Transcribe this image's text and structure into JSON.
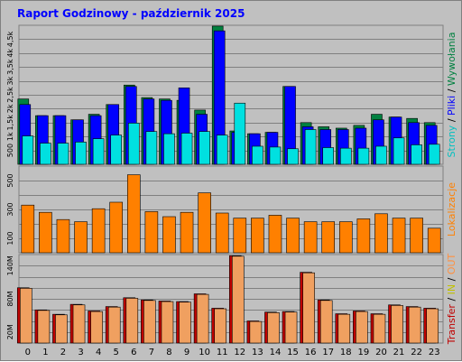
{
  "chart_data": {
    "title": "Raport Godzinowy -  październik 2025",
    "type": "bar",
    "categories": [
      "0",
      "1",
      "2",
      "3",
      "4",
      "5",
      "6",
      "7",
      "8",
      "9",
      "10",
      "11",
      "12",
      "13",
      "14",
      "15",
      "16",
      "17",
      "18",
      "19",
      "20",
      "21",
      "22",
      "23"
    ],
    "panels": [
      {
        "id": "hits",
        "type": "bar",
        "y_ticks": [
          "500",
          "1k",
          "1,5k",
          "2k",
          "2,5k",
          "3k",
          "3,5k",
          "4k",
          "4,5k"
        ],
        "ylim": [
          0,
          5000
        ],
        "label_parts": [
          {
            "text": "Strony",
            "color": "#00c0c0"
          },
          {
            "text": " / ",
            "color": "#000000"
          },
          {
            "text": "Pliki",
            "color": "#0000ff"
          },
          {
            "text": " / ",
            "color": "#000000"
          },
          {
            "text": "Wywołania",
            "color": "#008040"
          }
        ],
        "series": [
          {
            "name": "Wywołania",
            "color": "#008040",
            "values": [
              2350,
              1750,
              1750,
              1600,
              1800,
              2150,
              2850,
              2400,
              2350,
              2300,
              1950,
              4970,
              1200,
              1100,
              1150,
              2800,
              1500,
              1350,
              1300,
              1400,
              1800,
              1700,
              1650,
              1500
            ]
          },
          {
            "name": "Pliki",
            "color": "#0000ff",
            "values": [
              2150,
              1750,
              1750,
              1600,
              1750,
              2150,
              2800,
              2350,
              2300,
              2750,
              1800,
              4800,
              1150,
              1100,
              1150,
              2800,
              1350,
              1250,
              1250,
              1300,
              1600,
              1700,
              1500,
              1400
            ]
          },
          {
            "name": "Strony",
            "color": "#00e0e0",
            "values": [
              1020,
              760,
              760,
              800,
              920,
              1050,
              1480,
              1180,
              1100,
              1120,
              1180,
              1050,
              2200,
              650,
              620,
              560,
              1250,
              600,
              580,
              580,
              650,
              950,
              700,
              720
            ]
          }
        ]
      },
      {
        "id": "visits",
        "type": "bar",
        "y_ticks": [
          "100",
          "300",
          "500"
        ],
        "ylim": [
          0,
          600
        ],
        "label_parts": [
          {
            "text": "Lokalizacje",
            "color": "#ff8000"
          }
        ],
        "series": [
          {
            "name": "Lokalizacje",
            "color": "#ff8000",
            "values": [
              330,
              280,
              230,
              215,
              305,
              350,
              540,
              285,
              250,
              280,
              415,
              275,
              240,
              240,
              260,
              240,
              215,
              215,
              215,
              235,
              270,
              240,
              240,
              170
            ]
          }
        ]
      },
      {
        "id": "transfer",
        "type": "bar",
        "y_ticks": [
          "20M",
          "80M",
          "140M"
        ],
        "ylim": [
          0,
          160
        ],
        "label_parts": [
          {
            "text": "Transfer",
            "color": "#c00000"
          },
          {
            "text": " / ",
            "color": "#000000"
          },
          {
            "text": "IN",
            "color": "#c0c000"
          },
          {
            "text": " / ",
            "color": "#000000"
          },
          {
            "text": "OUT",
            "color": "#ff9040"
          }
        ],
        "series": [
          {
            "name": "Transfer",
            "color": "#c00000",
            "values": [
              100,
              60,
              52,
              70,
              58,
              66,
              82,
              78,
              76,
              75,
              89,
              63,
              158,
              40,
              56,
              57,
              128,
              78,
              53,
              58,
              53,
              69,
              66,
              63
            ]
          },
          {
            "name": "OUT",
            "color": "#f0a060",
            "values": [
              99,
              59,
              51,
              69,
              57,
              65,
              81,
              77,
              75,
              74,
              88,
              62,
              157,
              39,
              55,
              56,
              127,
              77,
              52,
              57,
              52,
              68,
              65,
              62
            ]
          }
        ]
      }
    ]
  }
}
